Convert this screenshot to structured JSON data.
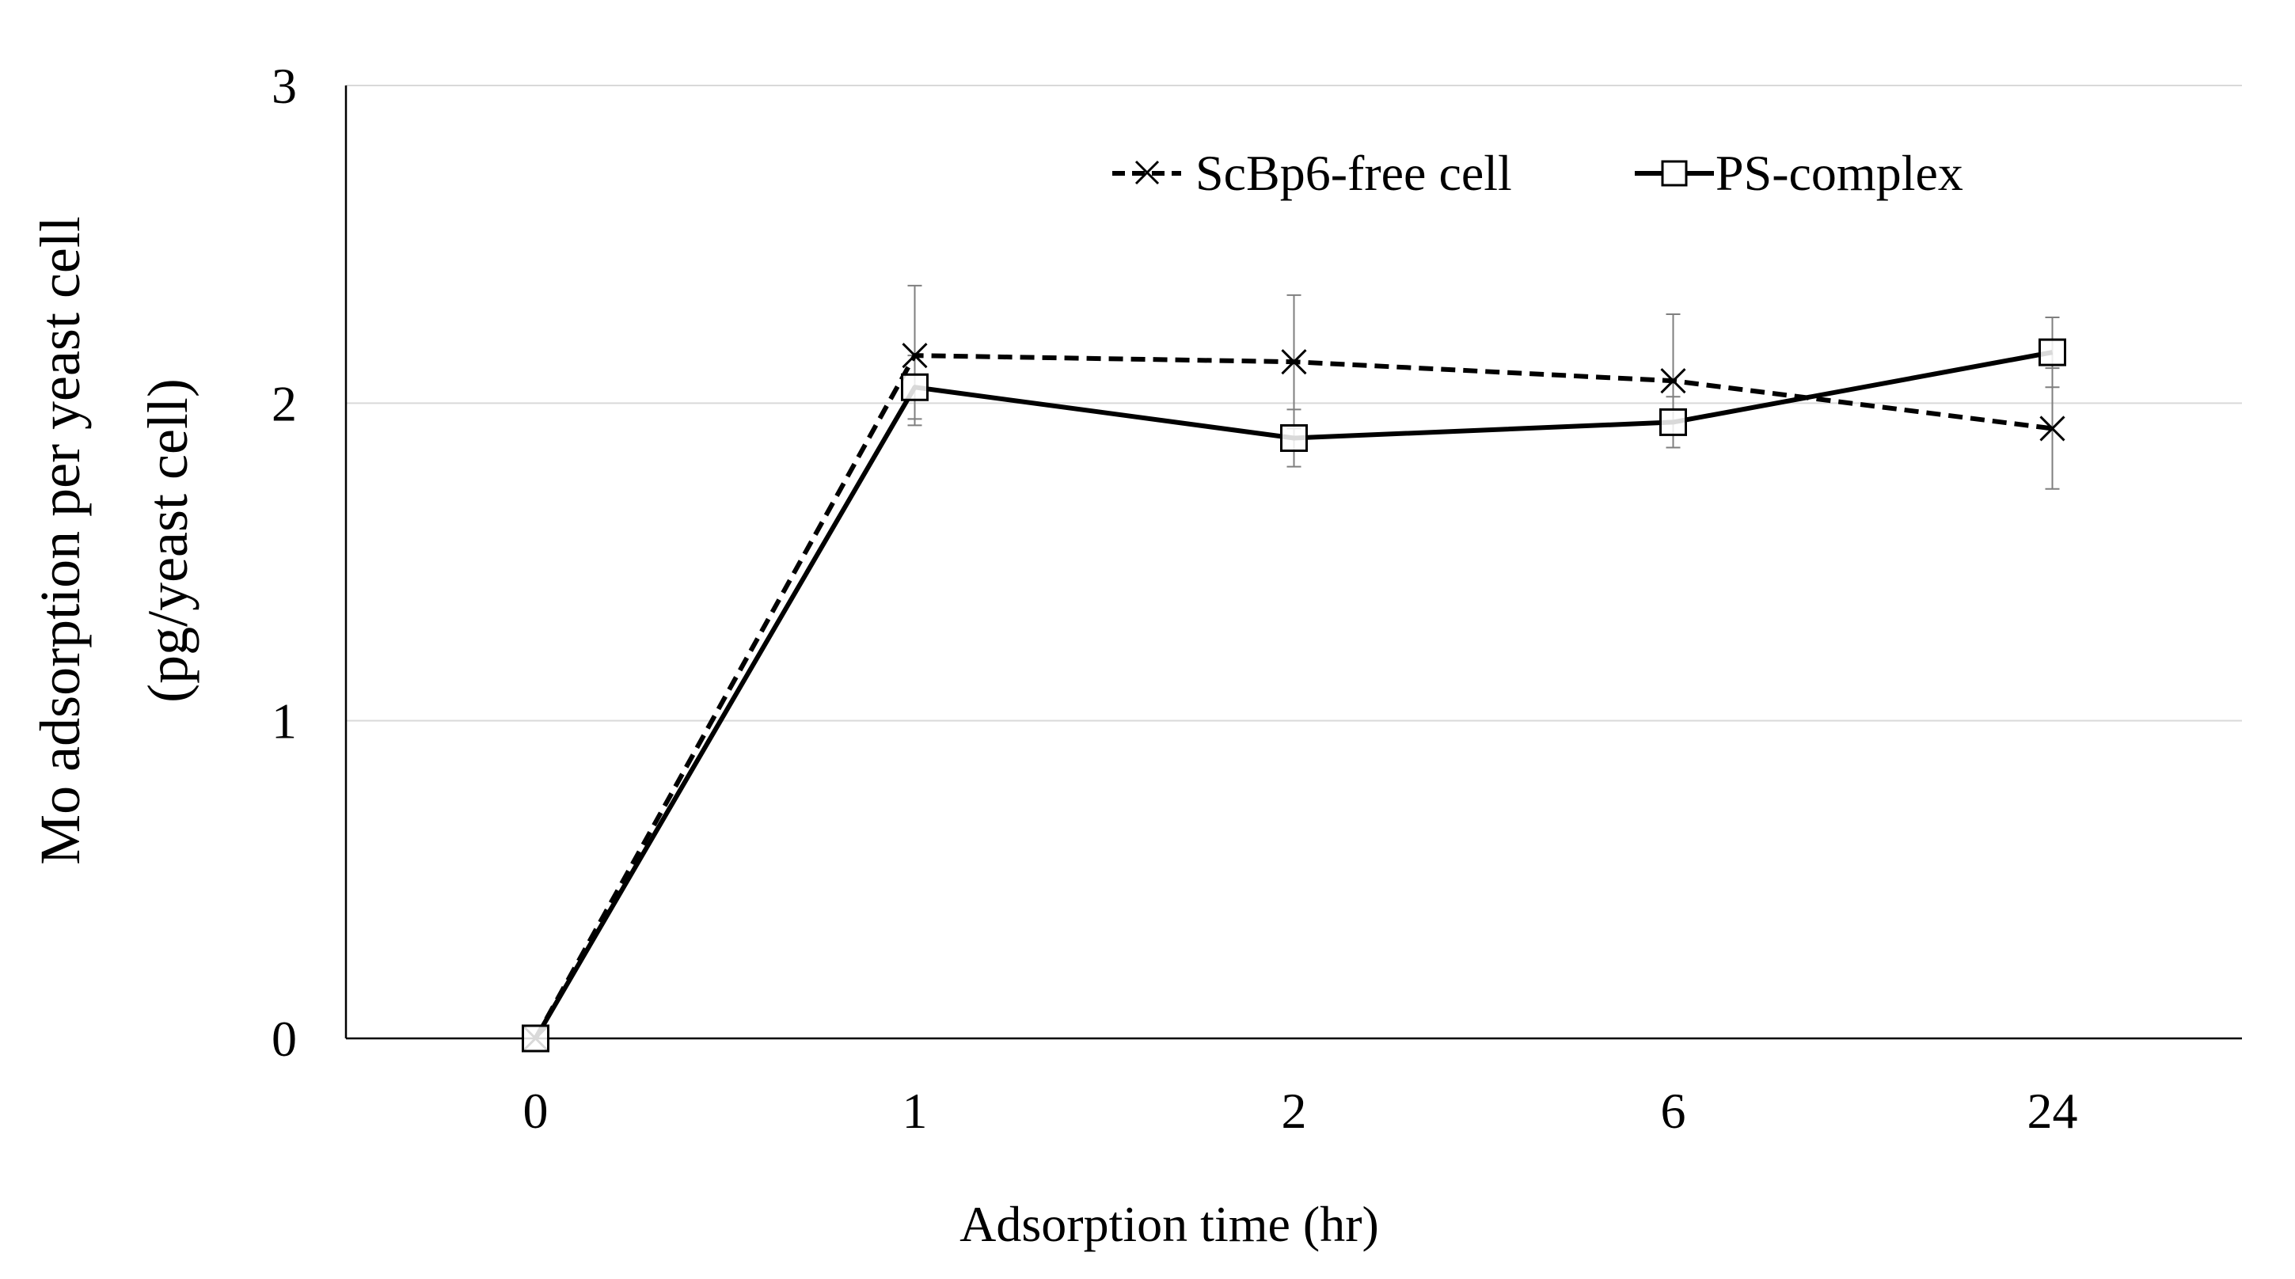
{
  "chart_data": {
    "type": "line",
    "title": "",
    "xlabel": "Adsorption time (hr)",
    "ylabel_line1": "Mo adsorption per yeast cell",
    "ylabel_line2": "(pg/yeast cell)",
    "categories": [
      "0",
      "1",
      "2",
      "6",
      "24"
    ],
    "yticks": [
      "0",
      "1",
      "2",
      "3"
    ],
    "ylim": [
      0,
      3
    ],
    "grid": true,
    "legend_position": "top-right",
    "series": [
      {
        "name": "ScBp6-free cell",
        "marker": "x",
        "linestyle": "dashed",
        "values": [
          0,
          2.15,
          2.13,
          2.07,
          1.92
        ],
        "errors": [
          0,
          0.22,
          0.21,
          0.21,
          0.19
        ]
      },
      {
        "name": "PS-complex",
        "marker": "square",
        "linestyle": "solid",
        "values": [
          0,
          2.05,
          1.89,
          1.94,
          2.16
        ],
        "errors": [
          0,
          0.1,
          0.09,
          0.08,
          0.11
        ]
      }
    ],
    "colors": {
      "line": "#000000",
      "grid": "#d9d9d9",
      "axis": "#000000",
      "error": "#7f7f7f"
    }
  }
}
